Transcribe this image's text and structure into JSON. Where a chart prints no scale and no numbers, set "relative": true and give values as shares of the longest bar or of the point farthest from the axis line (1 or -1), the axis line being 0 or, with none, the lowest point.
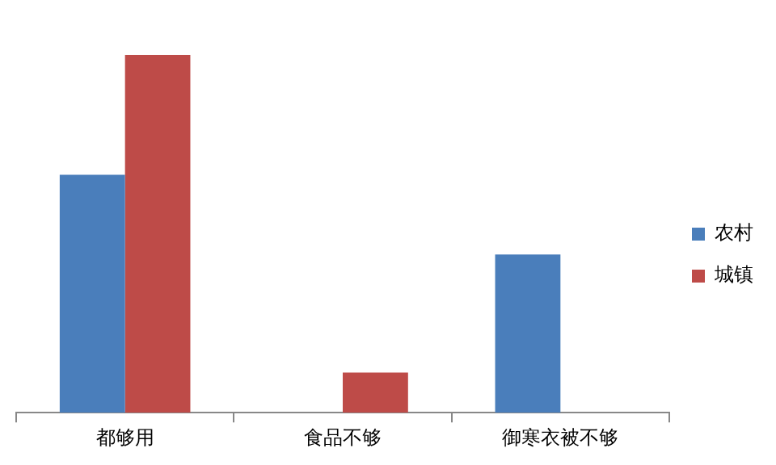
{
  "chart_data": {
    "type": "bar",
    "relative": true,
    "categories": [
      "都够用",
      "食品不够",
      "御寒衣被不够"
    ],
    "series": [
      {
        "name": "农村",
        "color": "#4a7ebb",
        "values": [
          0.665,
          0,
          0.442
        ]
      },
      {
        "name": "城镇",
        "color": "#be4b48",
        "values": [
          1,
          0.112,
          0
        ]
      }
    ],
    "legend": "right",
    "grid": false
  }
}
